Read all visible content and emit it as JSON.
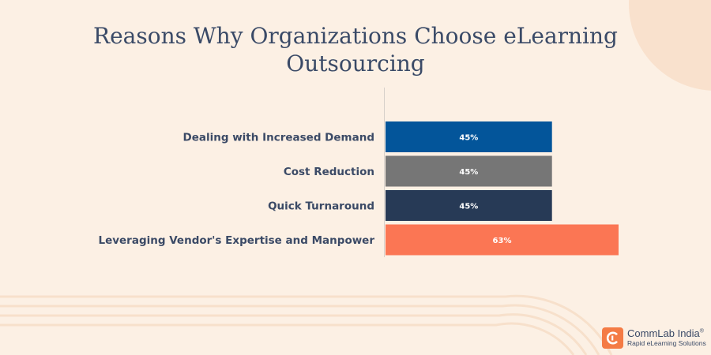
{
  "title": "Reasons Why Organizations Choose eLearning Outsourcing",
  "chart_data": {
    "type": "bar",
    "orientation": "horizontal",
    "title": "Reasons Why Organizations Choose eLearning Outsourcing",
    "categories": [
      "Dealing with Increased Demand",
      "Cost Reduction",
      "Quick Turnaround",
      "Leveraging Vendor's Expertise and Manpower"
    ],
    "values": [
      45,
      45,
      45,
      63
    ],
    "value_labels": [
      "45%",
      "45%",
      "45%",
      "63%"
    ],
    "bar_colors": [
      "#03559a",
      "#767676",
      "#273a56",
      "#fb7654"
    ],
    "xlim": [
      0,
      63
    ],
    "grid": false,
    "legend": "none"
  },
  "logo": {
    "name": "CommLab India",
    "registered": "®",
    "tagline": "Rapid eLearning Solutions",
    "accent_color": "#f47b45"
  },
  "colors": {
    "background": "#fcf0e4",
    "text": "#3a4a67"
  }
}
